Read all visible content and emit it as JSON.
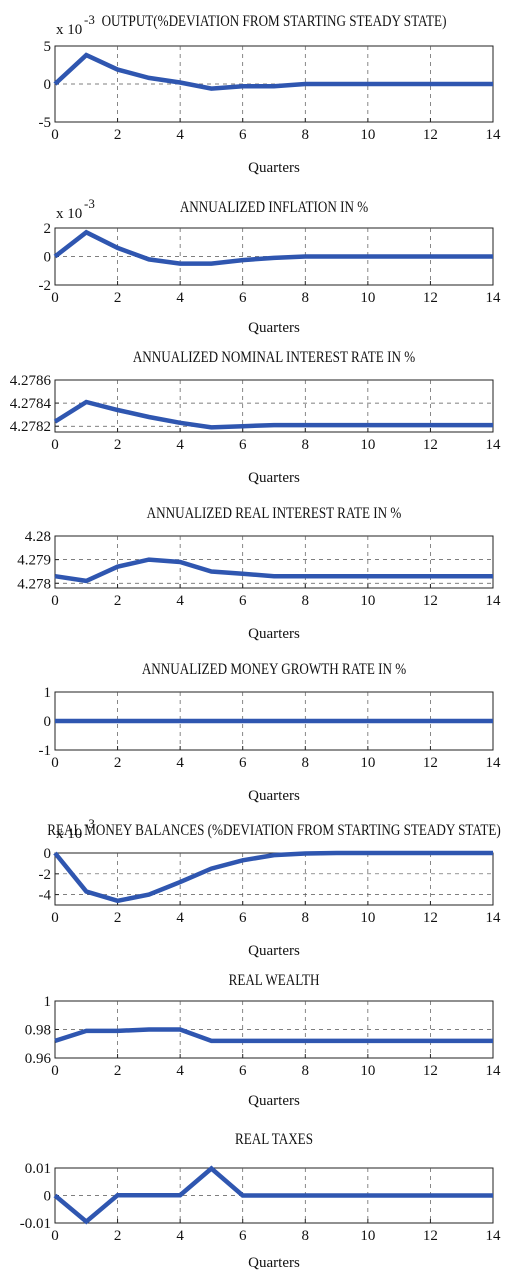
{
  "figure": {
    "xlabel": "Quarters",
    "line_color": "#2f56b0"
  },
  "chart_data": [
    {
      "type": "line",
      "title": "OUTPUT(%DEVIATION FROM STARTING STEADY STATE)",
      "xlabel": "Quarters",
      "multiplier_label": "x 10",
      "multiplier_exp": "-3",
      "xlim": [
        0,
        14
      ],
      "ylim": [
        -5,
        5
      ],
      "xticks": [
        0,
        2,
        4,
        6,
        8,
        10,
        12,
        14
      ],
      "xtick_labels": [
        "0",
        "2",
        "4",
        "6",
        "8",
        "10",
        "12",
        "14"
      ],
      "yticks": [
        5,
        0,
        -5
      ],
      "ytick_labels": [
        "5",
        "0",
        "-5"
      ],
      "grid": true,
      "x": [
        0,
        1,
        2,
        3,
        4,
        5,
        6,
        7,
        8,
        9,
        10,
        11,
        12,
        13,
        14
      ],
      "y": [
        0,
        3.8,
        1.9,
        0.8,
        0.2,
        -0.6,
        -0.3,
        -0.3,
        0,
        0,
        0,
        0,
        0,
        0,
        0
      ]
    },
    {
      "type": "line",
      "title": "ANNUALIZED INFLATION IN %",
      "xlabel": "Quarters",
      "multiplier_label": "x 10",
      "multiplier_exp": "-3",
      "xlim": [
        0,
        14
      ],
      "ylim": [
        -2,
        2
      ],
      "xticks": [
        0,
        2,
        4,
        6,
        8,
        10,
        12,
        14
      ],
      "xtick_labels": [
        "0",
        "2",
        "4",
        "6",
        "8",
        "10",
        "12",
        "14"
      ],
      "yticks": [
        2,
        0,
        -2
      ],
      "ytick_labels": [
        "2",
        "0",
        "-2"
      ],
      "grid": true,
      "x": [
        0,
        1,
        2,
        3,
        4,
        5,
        6,
        7,
        8,
        9,
        10,
        11,
        12,
        13,
        14
      ],
      "y": [
        0,
        1.7,
        0.6,
        -0.2,
        -0.5,
        -0.5,
        -0.25,
        -0.1,
        0,
        0,
        0,
        0,
        0,
        0,
        0
      ]
    },
    {
      "type": "line",
      "title": "ANNUALIZED NOMINAL INTEREST RATE IN %",
      "xlabel": "Quarters",
      "multiplier_label": "",
      "multiplier_exp": "",
      "xlim": [
        0,
        14
      ],
      "ylim": [
        4.27815,
        4.2786
      ],
      "xticks": [
        0,
        2,
        4,
        6,
        8,
        10,
        12,
        14
      ],
      "xtick_labels": [
        "0",
        "2",
        "4",
        "6",
        "8",
        "10",
        "12",
        "14"
      ],
      "yticks": [
        4.2786,
        4.2784,
        4.2782
      ],
      "ytick_labels": [
        "4.2786",
        "4.2784",
        "4.2782"
      ],
      "grid": true,
      "x": [
        0,
        1,
        2,
        3,
        4,
        5,
        6,
        7,
        8,
        9,
        10,
        11,
        12,
        13,
        14
      ],
      "y": [
        4.27824,
        4.27841,
        4.27834,
        4.27828,
        4.27823,
        4.27819,
        4.2782,
        4.27821,
        4.27821,
        4.27821,
        4.27821,
        4.27821,
        4.27821,
        4.27821,
        4.27821
      ]
    },
    {
      "type": "line",
      "title": "ANNUALIZED REAL INTEREST RATE IN %",
      "xlabel": "Quarters",
      "multiplier_label": "",
      "multiplier_exp": "",
      "xlim": [
        0,
        14
      ],
      "ylim": [
        4.2778,
        4.28
      ],
      "xticks": [
        0,
        2,
        4,
        6,
        8,
        10,
        12,
        14
      ],
      "xtick_labels": [
        "0",
        "2",
        "4",
        "6",
        "8",
        "10",
        "12",
        "14"
      ],
      "yticks": [
        4.28,
        4.279,
        4.278
      ],
      "ytick_labels": [
        "4.28",
        "4.279",
        "4.278"
      ],
      "grid": true,
      "x": [
        0,
        1,
        2,
        3,
        4,
        5,
        6,
        7,
        8,
        9,
        10,
        11,
        12,
        13,
        14
      ],
      "y": [
        4.2783,
        4.2781,
        4.2787,
        4.279,
        4.2789,
        4.2785,
        4.2784,
        4.2783,
        4.2783,
        4.2783,
        4.2783,
        4.2783,
        4.2783,
        4.2783,
        4.2783
      ]
    },
    {
      "type": "line",
      "title": "ANNUALIZED MONEY GROWTH RATE IN %",
      "xlabel": "Quarters",
      "multiplier_label": "",
      "multiplier_exp": "",
      "xlim": [
        0,
        14
      ],
      "ylim": [
        -1,
        1
      ],
      "xticks": [
        0,
        2,
        4,
        6,
        8,
        10,
        12,
        14
      ],
      "xtick_labels": [
        "0",
        "2",
        "4",
        "6",
        "8",
        "10",
        "12",
        "14"
      ],
      "yticks": [
        1,
        0,
        -1
      ],
      "ytick_labels": [
        "1",
        "0",
        "-1"
      ],
      "grid": true,
      "x": [
        0,
        1,
        2,
        3,
        4,
        5,
        6,
        7,
        8,
        9,
        10,
        11,
        12,
        13,
        14
      ],
      "y": [
        0,
        0,
        0,
        0,
        0,
        0,
        0,
        0,
        0,
        0,
        0,
        0,
        0,
        0,
        0
      ]
    },
    {
      "type": "line",
      "title": "REAL MONEY BALANCES (%DEVIATION FROM STARTING STEADY STATE)",
      "xlabel": "Quarters",
      "multiplier_label": "x 10",
      "multiplier_exp": "-3",
      "xlim": [
        0,
        14
      ],
      "ylim": [
        -5,
        0
      ],
      "xticks": [
        0,
        2,
        4,
        6,
        8,
        10,
        12,
        14
      ],
      "xtick_labels": [
        "0",
        "2",
        "4",
        "6",
        "8",
        "10",
        "12",
        "14"
      ],
      "yticks": [
        0,
        -2,
        -4
      ],
      "ytick_labels": [
        "0",
        "-2",
        "-4"
      ],
      "grid": true,
      "x": [
        0,
        1,
        2,
        3,
        4,
        5,
        6,
        7,
        8,
        9,
        10,
        11,
        12,
        13,
        14
      ],
      "y": [
        0,
        -3.7,
        -4.6,
        -4.0,
        -2.8,
        -1.5,
        -0.7,
        -0.2,
        -0.05,
        0,
        0,
        0,
        0,
        0,
        0
      ]
    },
    {
      "type": "line",
      "title": "REAL WEALTH",
      "xlabel": "Quarters",
      "multiplier_label": "",
      "multiplier_exp": "",
      "xlim": [
        0,
        14
      ],
      "ylim": [
        0.96,
        1
      ],
      "xticks": [
        0,
        2,
        4,
        6,
        8,
        10,
        12,
        14
      ],
      "xtick_labels": [
        "0",
        "2",
        "4",
        "6",
        "8",
        "10",
        "12",
        "14"
      ],
      "yticks": [
        1,
        0.98,
        0.96
      ],
      "ytick_labels": [
        "1",
        "0.98",
        "0.96"
      ],
      "grid": true,
      "x": [
        0,
        1,
        2,
        3,
        4,
        5,
        6,
        7,
        8,
        9,
        10,
        11,
        12,
        13,
        14
      ],
      "y": [
        0.972,
        0.979,
        0.979,
        0.98,
        0.98,
        0.972,
        0.972,
        0.972,
        0.972,
        0.972,
        0.972,
        0.972,
        0.972,
        0.972,
        0.972
      ]
    },
    {
      "type": "line",
      "title": "REAL TAXES",
      "xlabel": "Quarters",
      "multiplier_label": "",
      "multiplier_exp": "",
      "xlim": [
        0,
        14
      ],
      "ylim": [
        -0.01,
        0.01
      ],
      "xticks": [
        0,
        2,
        4,
        6,
        8,
        10,
        12,
        14
      ],
      "xtick_labels": [
        "0",
        "2",
        "4",
        "6",
        "8",
        "10",
        "12",
        "14"
      ],
      "yticks": [
        0.01,
        0,
        -0.01
      ],
      "ytick_labels": [
        "0.01",
        "0",
        "-0.01"
      ],
      "grid": true,
      "x": [
        0,
        1,
        2,
        3,
        4,
        5,
        6,
        7,
        8,
        9,
        10,
        11,
        12,
        13,
        14
      ],
      "y": [
        0,
        -0.0095,
        0.0001,
        0.0001,
        0.0001,
        0.0098,
        0,
        0,
        0,
        0,
        0,
        0,
        0,
        0,
        0
      ]
    }
  ]
}
